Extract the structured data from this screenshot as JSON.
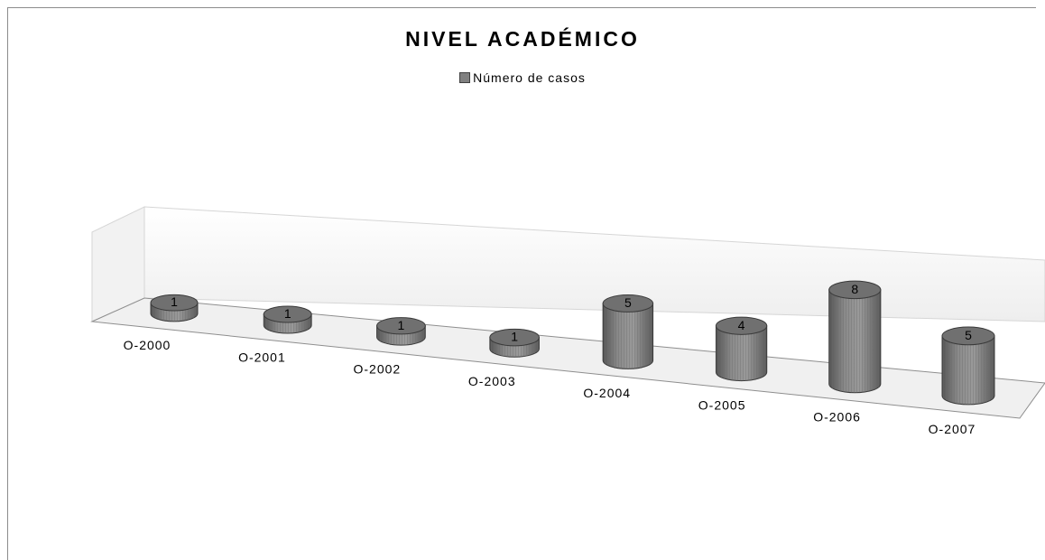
{
  "chart_data": {
    "type": "bar",
    "title": "NIVEL ACADÉMICO",
    "legend": {
      "position": "top"
    },
    "categories": [
      "O-2000",
      "O-2001",
      "O-2002",
      "O-2003",
      "O-2004",
      "O-2005",
      "O-2006",
      "O-2007"
    ],
    "series": [
      {
        "name": "Número de casos",
        "values": [
          1,
          1,
          1,
          1,
          5,
          4,
          8,
          5
        ]
      }
    ],
    "bar_shape": "cylinder",
    "grid": false,
    "colors": {
      "bar": "#808080",
      "bar_dark": "#5e5e5e",
      "bar_top": "#707070"
    }
  }
}
